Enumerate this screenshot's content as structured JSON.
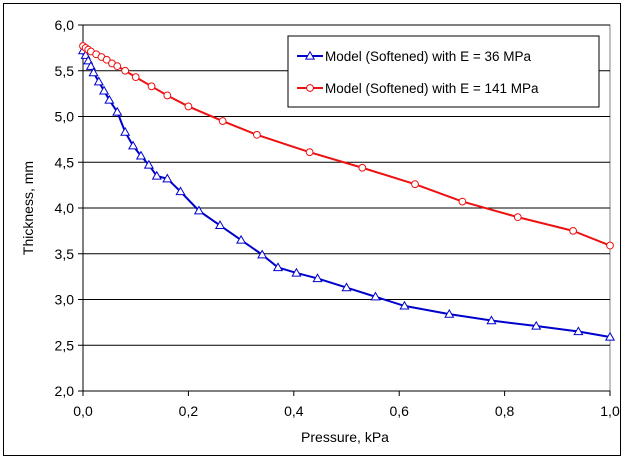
{
  "chart_data": {
    "type": "line",
    "title": "",
    "xlabel": "Pressure, kPa",
    "ylabel": "Thickness, mm",
    "xlim": [
      0.0,
      1.0
    ],
    "ylim": [
      2.0,
      6.0
    ],
    "x_ticks": [
      "0,0",
      "0,2",
      "0,4",
      "0,6",
      "0,8",
      "1,0"
    ],
    "x_tick_values": [
      0.0,
      0.2,
      0.4,
      0.6,
      0.8,
      1.0
    ],
    "y_ticks": [
      "2,0",
      "2,5",
      "3,0",
      "3,5",
      "4,0",
      "4,5",
      "5,0",
      "5,5",
      "6,0"
    ],
    "y_tick_values": [
      2.0,
      2.5,
      3.0,
      3.5,
      4.0,
      4.5,
      5.0,
      5.5,
      6.0
    ],
    "grid": {
      "horizontal": true,
      "vertical": false
    },
    "legend_position": "top-right",
    "series": [
      {
        "name": "Model (Softened) with E = 36 MPa",
        "color": "#0000cc",
        "marker": "triangle",
        "x": [
          0.0,
          0.005,
          0.01,
          0.015,
          0.02,
          0.03,
          0.04,
          0.05,
          0.065,
          0.08,
          0.095,
          0.11,
          0.125,
          0.14,
          0.16,
          0.185,
          0.22,
          0.26,
          0.3,
          0.34,
          0.37,
          0.405,
          0.445,
          0.5,
          0.555,
          0.61,
          0.695,
          0.775,
          0.86,
          0.94,
          1.0
        ],
        "y": [
          5.72,
          5.67,
          5.61,
          5.55,
          5.48,
          5.38,
          5.28,
          5.18,
          5.05,
          4.83,
          4.68,
          4.57,
          4.47,
          4.35,
          4.32,
          4.18,
          3.97,
          3.81,
          3.65,
          3.49,
          3.35,
          3.29,
          3.23,
          3.13,
          3.03,
          2.93,
          2.84,
          2.77,
          2.71,
          2.65,
          2.59
        ]
      },
      {
        "name": "Model (Softened) with E = 141 MPa",
        "color": "#ee1111",
        "marker": "circle",
        "x": [
          0.0,
          0.005,
          0.01,
          0.015,
          0.025,
          0.035,
          0.045,
          0.055,
          0.065,
          0.08,
          0.1,
          0.13,
          0.16,
          0.2,
          0.265,
          0.33,
          0.43,
          0.53,
          0.63,
          0.72,
          0.825,
          0.93,
          1.0
        ],
        "y": [
          5.77,
          5.75,
          5.73,
          5.71,
          5.68,
          5.65,
          5.62,
          5.58,
          5.55,
          5.5,
          5.43,
          5.33,
          5.23,
          5.11,
          4.95,
          4.8,
          4.61,
          4.44,
          4.26,
          4.07,
          3.9,
          3.75,
          3.59
        ]
      }
    ]
  }
}
